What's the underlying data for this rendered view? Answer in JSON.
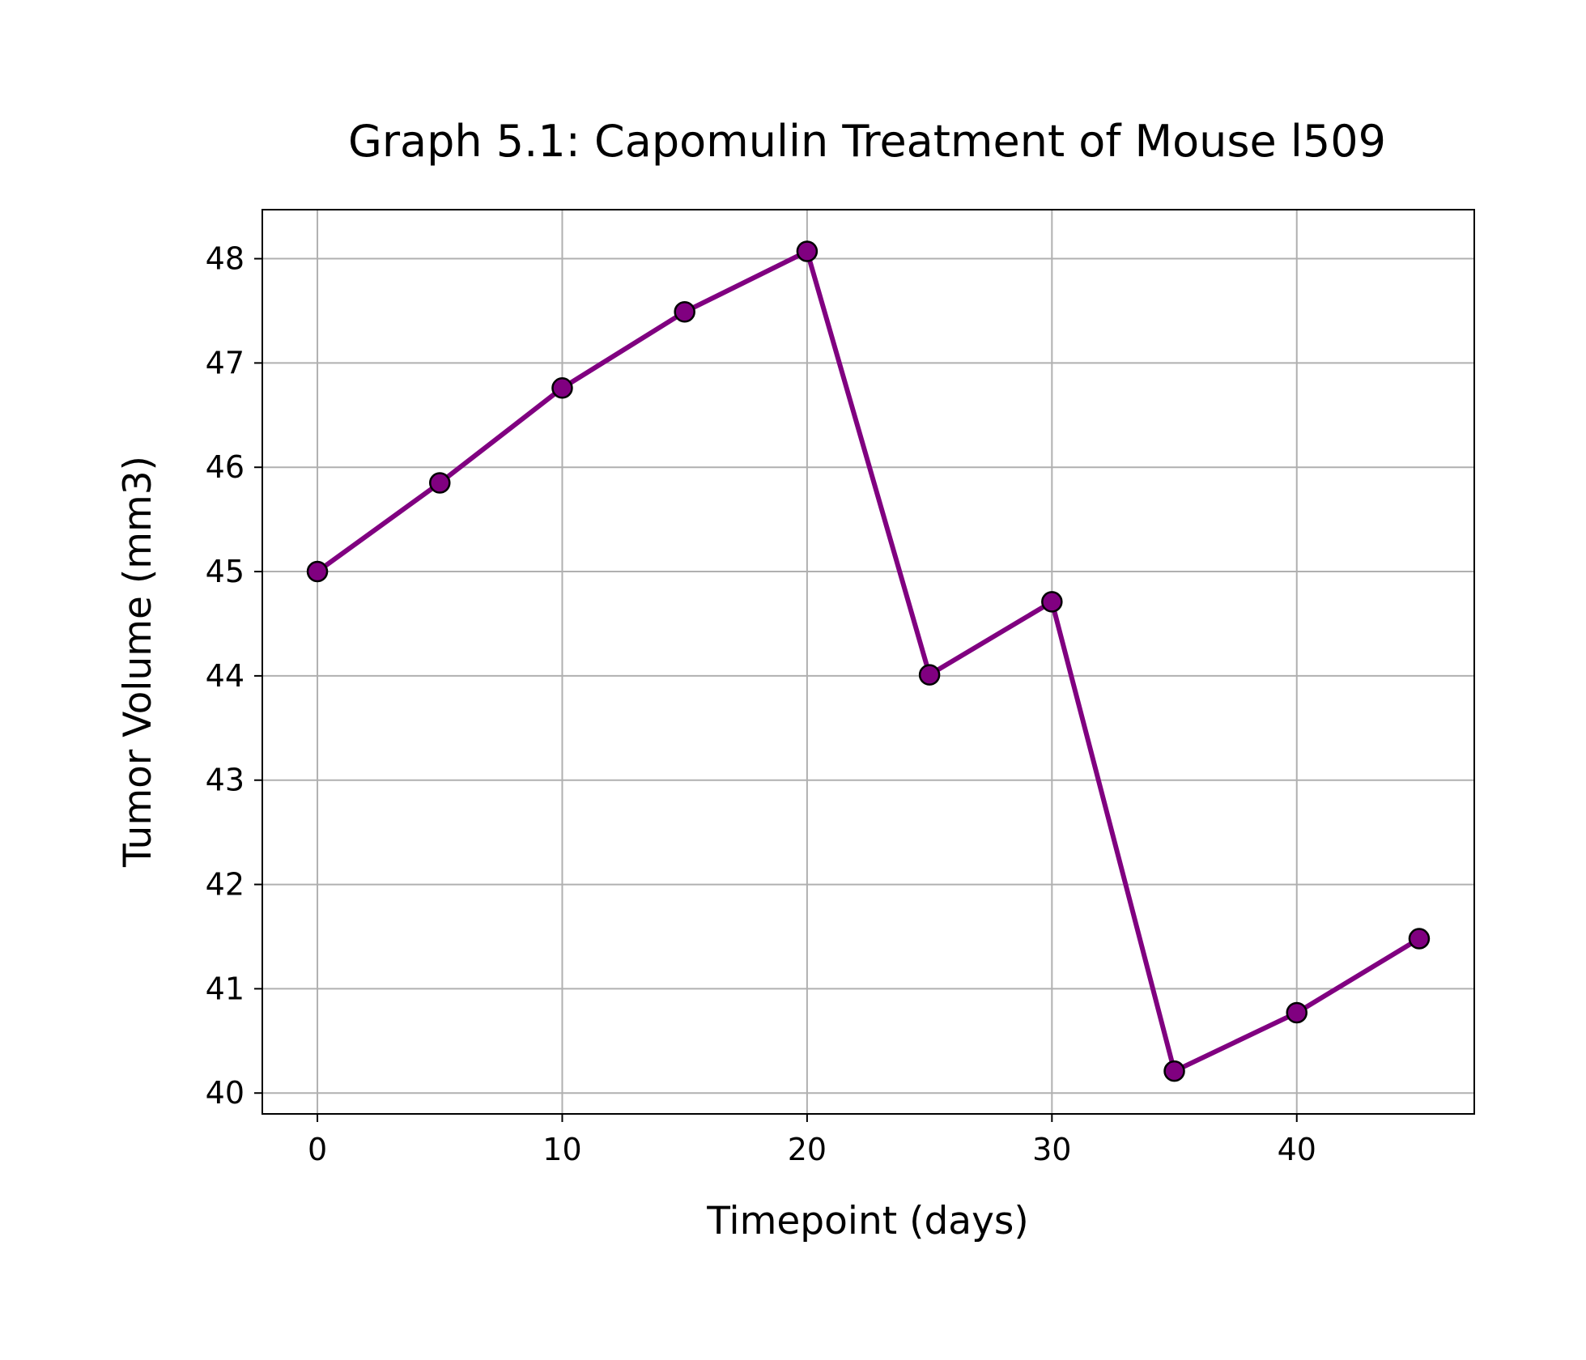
{
  "chart_data": {
    "type": "line",
    "title": "Graph 5.1: Capomulin Treatment of Mouse l509",
    "xlabel": "Timepoint (days)",
    "ylabel": "Tumor Volume (mm3)",
    "x_ticks": [
      0,
      10,
      20,
      30,
      40
    ],
    "y_ticks": [
      40,
      41,
      42,
      43,
      44,
      45,
      46,
      47,
      48
    ],
    "xlim": [
      -2.25,
      47.25
    ],
    "ylim": [
      39.8,
      48.47
    ],
    "grid": true,
    "line_color": "#800080",
    "marker_face_color": "#800080",
    "marker_edge_color": "#000000",
    "series": [
      {
        "x": [
          0,
          5,
          10,
          15,
          20,
          25,
          30,
          35,
          40,
          45
        ],
        "y": [
          45.0,
          45.85,
          46.76,
          47.49,
          48.07,
          44.01,
          44.71,
          40.21,
          40.77,
          41.48
        ]
      }
    ]
  }
}
